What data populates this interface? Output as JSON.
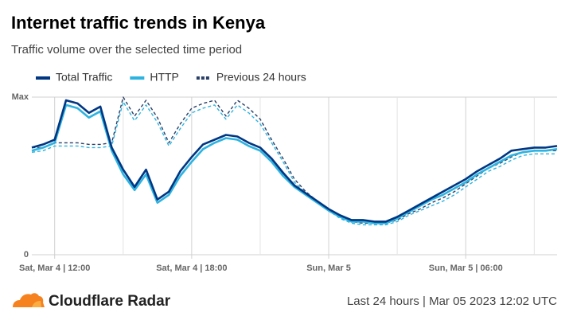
{
  "chart_data": {
    "type": "line",
    "title": "Internet traffic trends in Kenya",
    "subtitle": "Traffic volume over the selected time period",
    "x": [
      11,
      11.5,
      12,
      12.5,
      13,
      13.5,
      14,
      14.5,
      15,
      15.5,
      16,
      16.5,
      17,
      17.5,
      18,
      18.5,
      19,
      19.5,
      20,
      20.5,
      21,
      21.5,
      22,
      22.5,
      23,
      23.5,
      24,
      24.5,
      25,
      25.5,
      26,
      26.5,
      27,
      27.5,
      28,
      28.5,
      29,
      29.5,
      30,
      30.5,
      31,
      31.5,
      32,
      32.5,
      33,
      33.5,
      34
    ],
    "series": [
      {
        "name": "Total Traffic",
        "color": "#003682",
        "dashed": false,
        "values": [
          68,
          70,
          73,
          98,
          96,
          90,
          94,
          68,
          54,
          43,
          54,
          35,
          40,
          53,
          62,
          70,
          73,
          76,
          75,
          71,
          68,
          61,
          52,
          44,
          39,
          34,
          29,
          25,
          22,
          22,
          21,
          21,
          24,
          28,
          32,
          36,
          40,
          44,
          48,
          53,
          57,
          61,
          66,
          67,
          68,
          68,
          69
        ]
      },
      {
        "name": "HTTP",
        "color": "#2db3e0",
        "dashed": false,
        "values": [
          66,
          68,
          71,
          95,
          93,
          87,
          91,
          66,
          51,
          41,
          51,
          33,
          38,
          50,
          59,
          67,
          71,
          74,
          73,
          69,
          66,
          59,
          50,
          43,
          38,
          33,
          28,
          24,
          21,
          21,
          20,
          20,
          23,
          27,
          31,
          35,
          38,
          42,
          46,
          51,
          55,
          59,
          63,
          65,
          66,
          66,
          67
        ]
      },
      {
        "name": "Previous 24 hours",
        "color": "#2a3f66",
        "dashed": true,
        "values": [
          68,
          68,
          71,
          71,
          71,
          70,
          70,
          71,
          100,
          88,
          98,
          87,
          71,
          83,
          93,
          96,
          98,
          88,
          98,
          93,
          86,
          73,
          61,
          48,
          40,
          34,
          29,
          24,
          21,
          20,
          20,
          20,
          22,
          26,
          29,
          33,
          36,
          40,
          45,
          50,
          55,
          58,
          62,
          65,
          66,
          66,
          66
        ]
      },
      {
        "color": "#2db3e0",
        "dashed": true,
        "values": [
          65,
          66,
          69,
          69,
          69,
          68,
          68,
          69,
          97,
          85,
          95,
          84,
          69,
          80,
          90,
          93,
          95,
          86,
          95,
          90,
          83,
          71,
          59,
          46,
          39,
          33,
          28,
          23,
          20,
          19,
          19,
          19,
          21,
          25,
          28,
          31,
          34,
          38,
          43,
          48,
          53,
          56,
          60,
          63,
          64,
          64,
          64
        ]
      }
    ],
    "xlim": [
      11,
      34
    ],
    "xticks": [
      {
        "value": 12,
        "label": "Sat, Mar 4 | 12:00"
      },
      {
        "value": 18,
        "label": "Sat, Mar 4 | 18:00"
      },
      {
        "value": 24,
        "label": "Sun, Mar 5"
      },
      {
        "value": 30,
        "label": "Sun, Mar 5 | 06:00"
      }
    ],
    "xminor": [
      15,
      21,
      27,
      33
    ],
    "ylim": [
      0,
      100
    ],
    "yticks": [
      0,
      {
        "value": 100,
        "label": "Max"
      }
    ],
    "grid": true
  },
  "brand": "Cloudflare Radar",
  "footer_note": "Last 24 hours | Mar 05 2023 12:02 UTC"
}
